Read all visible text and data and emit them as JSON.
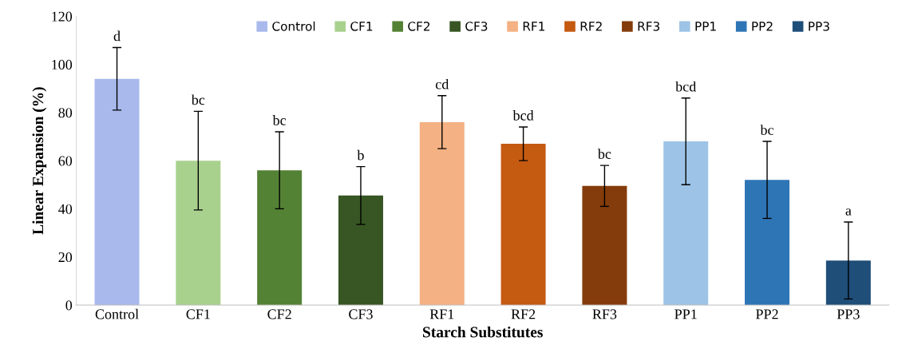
{
  "chart_data": {
    "type": "bar",
    "xlabel": "Starch Substitutes",
    "ylabel": "Linear Expansion (%)",
    "categories": [
      "Control",
      "CF1",
      "CF2",
      "CF3",
      "RF1",
      "RF2",
      "RF3",
      "PP1",
      "PP2",
      "PP3"
    ],
    "series": [
      {
        "name": "Control",
        "color": "#a9b9ec",
        "values": [
          94,
          null,
          null,
          null,
          null,
          null,
          null,
          null,
          null,
          null
        ],
        "errors": [
          13,
          null,
          null,
          null,
          null,
          null,
          null,
          null,
          null,
          null
        ]
      },
      {
        "name": "CF1",
        "color": "#a9d18e",
        "values": [
          null,
          60,
          null,
          null,
          null,
          null,
          null,
          null,
          null,
          null
        ],
        "errors": [
          null,
          20.5,
          null,
          null,
          null,
          null,
          null,
          null,
          null,
          null
        ]
      },
      {
        "name": "CF2",
        "color": "#548235",
        "values": [
          null,
          null,
          56,
          null,
          null,
          null,
          null,
          null,
          null,
          null
        ],
        "errors": [
          null,
          null,
          16,
          null,
          null,
          null,
          null,
          null,
          null,
          null
        ]
      },
      {
        "name": "CF3",
        "color": "#375623",
        "values": [
          null,
          null,
          null,
          45.5,
          null,
          null,
          null,
          null,
          null,
          null
        ],
        "errors": [
          null,
          null,
          null,
          12,
          null,
          null,
          null,
          null,
          null,
          null
        ]
      },
      {
        "name": "RF1",
        "color": "#f4b183",
        "values": [
          null,
          null,
          null,
          null,
          76,
          null,
          null,
          null,
          null,
          null
        ],
        "errors": [
          null,
          null,
          null,
          null,
          11,
          null,
          null,
          null,
          null,
          null
        ]
      },
      {
        "name": "RF2",
        "color": "#c55a11",
        "values": [
          null,
          null,
          null,
          null,
          null,
          67,
          null,
          null,
          null,
          null
        ],
        "errors": [
          null,
          null,
          null,
          null,
          null,
          7,
          null,
          null,
          null,
          null
        ]
      },
      {
        "name": "RF3",
        "color": "#843c0c",
        "values": [
          null,
          null,
          null,
          null,
          null,
          null,
          49.5,
          null,
          null,
          null
        ],
        "errors": [
          null,
          null,
          null,
          null,
          null,
          null,
          8.5,
          null,
          null,
          null
        ]
      },
      {
        "name": "PP1",
        "color": "#9dc3e6",
        "values": [
          null,
          null,
          null,
          null,
          null,
          null,
          null,
          68,
          null,
          null
        ],
        "errors": [
          null,
          null,
          null,
          null,
          null,
          null,
          null,
          18,
          null,
          null
        ]
      },
      {
        "name": "PP2",
        "color": "#2e75b6",
        "values": [
          null,
          null,
          null,
          null,
          null,
          null,
          null,
          null,
          52,
          null
        ],
        "errors": [
          null,
          null,
          null,
          null,
          null,
          null,
          null,
          null,
          16,
          null
        ]
      },
      {
        "name": "PP3",
        "color": "#1f4e79",
        "values": [
          null,
          null,
          null,
          null,
          null,
          null,
          null,
          null,
          null,
          18.5
        ],
        "errors": [
          null,
          null,
          null,
          null,
          null,
          null,
          null,
          null,
          null,
          16
        ]
      }
    ],
    "ylim": [
      0,
      120
    ],
    "yticks": [
      0,
      20,
      40,
      60,
      80,
      100,
      120
    ],
    "grid": false,
    "legend": "top",
    "annotations": [
      {
        "text": "d",
        "x": "Control",
        "y": 107
      },
      {
        "text": "bc",
        "x": "CF1",
        "y": 80.5
      },
      {
        "text": "bc",
        "x": "CF2",
        "y": 72
      },
      {
        "text": "b",
        "x": "CF3",
        "y": 57.5
      },
      {
        "text": "cd",
        "x": "RF1",
        "y": 87
      },
      {
        "text": "bcd",
        "x": "RF2",
        "y": 74
      },
      {
        "text": "bc",
        "x": "RF3",
        "y": 58
      },
      {
        "text": "bcd",
        "x": "PP1",
        "y": 86
      },
      {
        "text": "bc",
        "x": "PP2",
        "y": 68
      },
      {
        "text": "a",
        "x": "PP3",
        "y": 34.5
      }
    ]
  }
}
